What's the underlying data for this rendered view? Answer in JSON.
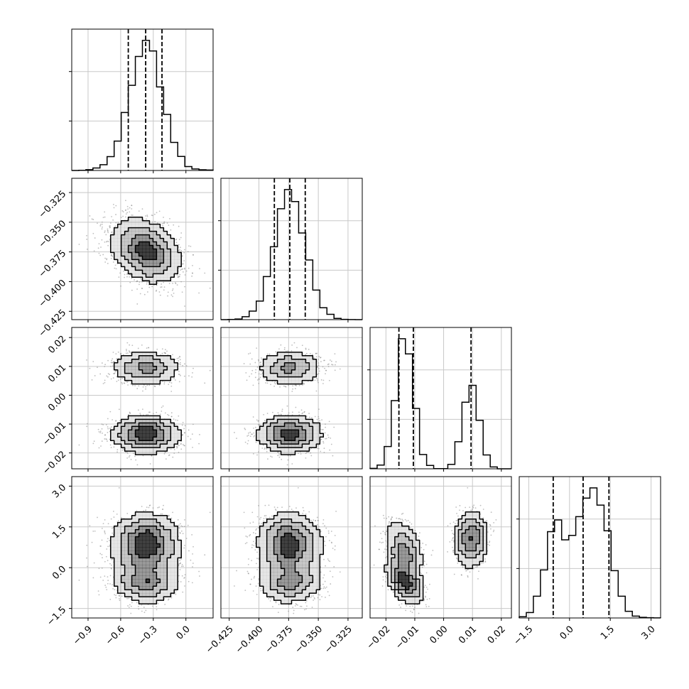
{
  "chart_data": {
    "type": "corner",
    "parameters": [
      {
        "range": [
          -1.05,
          0.25
        ],
        "ticks": [
          -0.9,
          -0.6,
          -0.3,
          0.0
        ],
        "tick_labels": [
          "−0.9",
          "−0.6",
          "−0.3",
          "0.0"
        ],
        "quantiles": [
          -0.53,
          -0.37,
          -0.22
        ],
        "modes": [
          {
            "mean": -0.37,
            "sd": 0.15,
            "weight": 1
          }
        ]
      },
      {
        "range": [
          -0.432,
          -0.313
        ],
        "ticks": [
          -0.425,
          -0.4,
          -0.375,
          -0.35,
          -0.325
        ],
        "tick_labels": [
          "−0.425",
          "−0.400",
          "−0.375",
          "−0.350",
          "−0.325"
        ],
        "quantiles": [
          -0.387,
          -0.374,
          -0.361
        ],
        "modes": [
          {
            "mean": -0.374,
            "sd": 0.013,
            "weight": 1
          }
        ]
      },
      {
        "range": [
          -0.0255,
          0.0235
        ],
        "ticks": [
          -0.02,
          -0.01,
          0.0,
          0.01,
          0.02
        ],
        "tick_labels": [
          "−0.02",
          "−0.01",
          "0.00",
          "0.01",
          "0.02"
        ],
        "quantiles": [
          -0.0155,
          -0.0105,
          0.0095
        ],
        "modes": [
          {
            "mean": -0.0135,
            "sd": 0.003,
            "weight": 0.62
          },
          {
            "mean": 0.0095,
            "sd": 0.0028,
            "weight": 0.38
          }
        ]
      },
      {
        "range": [
          -1.85,
          3.35
        ],
        "ticks": [
          -1.5,
          0.0,
          1.5,
          3.0
        ],
        "tick_labels": [
          "−1.5",
          "0.0",
          "1.5",
          "3.0"
        ],
        "quantiles": [
          -0.6,
          0.5,
          1.45
        ],
        "modes": [
          {
            "mean": -0.55,
            "sd": 0.4,
            "weight": 0.3
          },
          {
            "mean": 1.0,
            "sd": 0.75,
            "weight": 0.7
          }
        ]
      }
    ],
    "histogram_bins": 20,
    "grid": true,
    "line_color": "#000000",
    "density_color": "#000000"
  }
}
